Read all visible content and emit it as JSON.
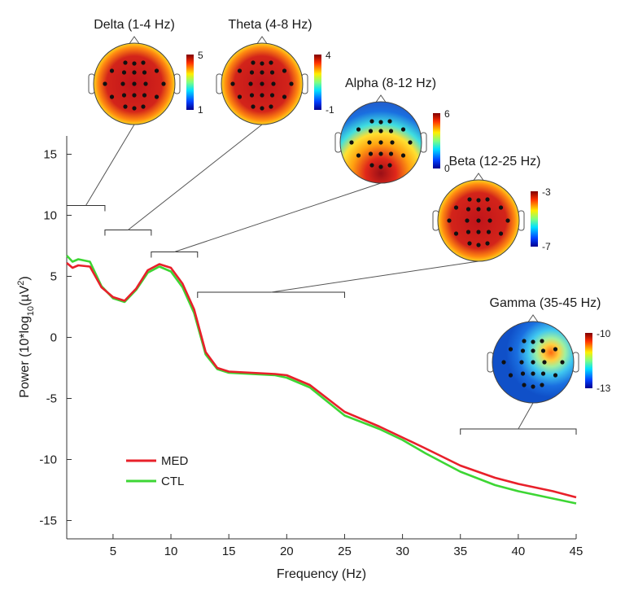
{
  "chart_data": {
    "type": "line",
    "xlabel": "Frequency (Hz)",
    "ylabel_main": "Power (10*log",
    "ylabel_sub": "10",
    "ylabel_mid": "(µV",
    "ylabel_sup": "2",
    "ylabel_end": ")",
    "xlim": [
      1,
      45
    ],
    "ylim": [
      -16.5,
      16.5
    ],
    "xticks": [
      5,
      10,
      15,
      20,
      25,
      30,
      35,
      40,
      45
    ],
    "yticks": [
      15,
      10,
      5,
      0,
      -5,
      -10,
      -15
    ],
    "legend_position": "bottom-left",
    "series": [
      {
        "name": "MED",
        "color": "#e8202a",
        "x": [
          1,
          1.5,
          2,
          3,
          4,
          5,
          6,
          7,
          8,
          9,
          10,
          11,
          12,
          13,
          14,
          15,
          17,
          19,
          20,
          22,
          25,
          28,
          30,
          32,
          35,
          38,
          40,
          43,
          45
        ],
        "y": [
          6.1,
          5.7,
          5.9,
          5.8,
          4.1,
          3.3,
          3.0,
          4.0,
          5.5,
          6.0,
          5.7,
          4.4,
          2.3,
          -1.2,
          -2.5,
          -2.8,
          -2.9,
          -3.0,
          -3.1,
          -3.9,
          -6.1,
          -7.3,
          -8.2,
          -9.1,
          -10.5,
          -11.5,
          -12.0,
          -12.6,
          -13.1
        ]
      },
      {
        "name": "CTL",
        "color": "#3dd634",
        "x": [
          1,
          1.5,
          2,
          3,
          4,
          5,
          6,
          7,
          8,
          9,
          10,
          11,
          12,
          13,
          14,
          15,
          17,
          19,
          20,
          22,
          25,
          28,
          30,
          32,
          35,
          38,
          40,
          43,
          45
        ],
        "y": [
          6.7,
          6.2,
          6.4,
          6.2,
          4.2,
          3.2,
          2.9,
          3.9,
          5.3,
          5.8,
          5.4,
          4.1,
          2.0,
          -1.4,
          -2.6,
          -2.9,
          -3.0,
          -3.1,
          -3.3,
          -4.1,
          -6.4,
          -7.5,
          -8.4,
          -9.5,
          -11.0,
          -12.1,
          -12.6,
          -13.2,
          -13.6
        ]
      }
    ],
    "bands": [
      {
        "name": "Delta",
        "title": "Delta (1-4 Hz)",
        "range": [
          1,
          4.3
        ],
        "bracket_y": 10.8,
        "cbar_max": "5",
        "cbar_min": "1",
        "pattern": "broad"
      },
      {
        "name": "Theta",
        "title": "Theta (4-8 Hz)",
        "range": [
          4.3,
          8.3
        ],
        "bracket_y": 8.8,
        "cbar_max": "4",
        "cbar_min": "-1",
        "pattern": "broad"
      },
      {
        "name": "Alpha",
        "title": "Alpha (8-12 Hz)",
        "range": [
          8.3,
          12.3
        ],
        "bracket_y": 7.0,
        "cbar_max": "6",
        "cbar_min": "0",
        "pattern": "posterior"
      },
      {
        "name": "Beta",
        "title": "Beta (12-25 Hz)",
        "range": [
          12.3,
          25
        ],
        "bracket_y": 3.7,
        "cbar_max": "-3",
        "cbar_min": "-7",
        "pattern": "broad"
      },
      {
        "name": "Gamma",
        "title": "Gamma (35-45 Hz)",
        "range": [
          35,
          45
        ],
        "bracket_y": -7.5,
        "cbar_max": "-10",
        "cbar_min": "-13",
        "pattern": "right"
      }
    ]
  }
}
